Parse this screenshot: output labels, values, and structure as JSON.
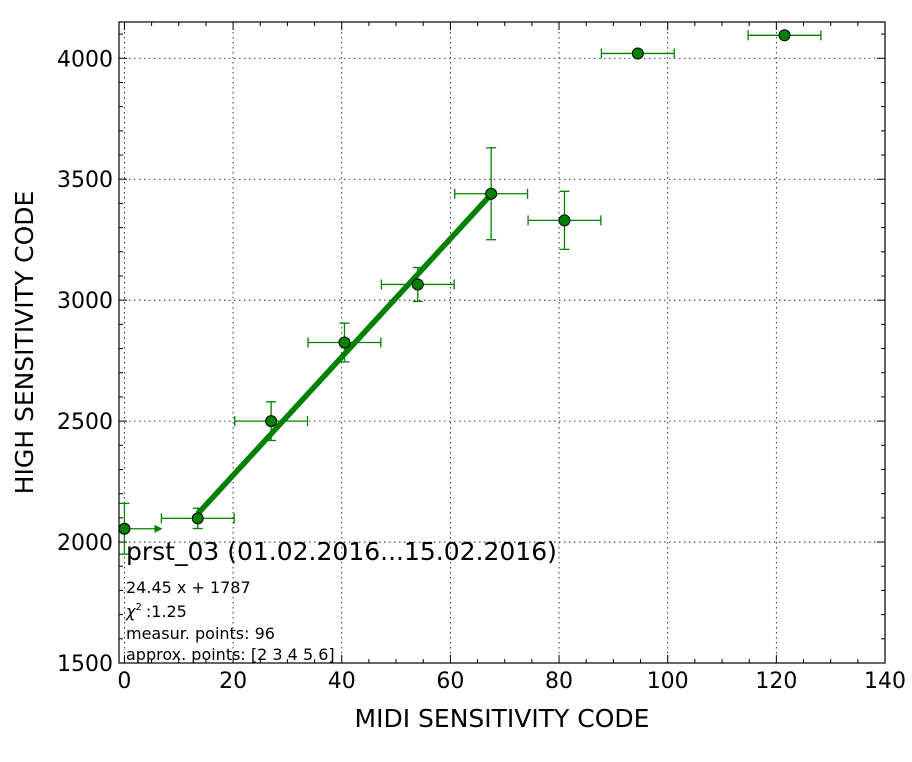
{
  "chart_data": {
    "type": "scatter",
    "xlabel": "MIDI SENSITIVITY CODE",
    "ylabel": "HIGH SENSITIVITY CODE",
    "xlim": [
      -1,
      140
    ],
    "ylim": [
      1500,
      4150
    ],
    "xticks": [
      0,
      20,
      40,
      60,
      80,
      100,
      120,
      140
    ],
    "yticks": [
      1500,
      2000,
      2500,
      3000,
      3500,
      4000
    ],
    "grid": true,
    "colors": {
      "series": "#008000",
      "marker_edge": "#000000",
      "fit": "#008000"
    },
    "points": [
      {
        "x": 0,
        "y": 2055,
        "xerr": 0,
        "yerr": 105,
        "x_arrow_to": 7
      },
      {
        "x": 13.5,
        "y": 2098,
        "xerr": 6.7,
        "yerr": 42
      },
      {
        "x": 27,
        "y": 2500,
        "xerr": 6.7,
        "yerr": 80
      },
      {
        "x": 40.5,
        "y": 2825,
        "xerr": 6.7,
        "yerr": 80
      },
      {
        "x": 54,
        "y": 3065,
        "xerr": 6.7,
        "yerr": 70
      },
      {
        "x": 67.5,
        "y": 3440,
        "xerr": 6.7,
        "yerr": 190
      },
      {
        "x": 81,
        "y": 3330,
        "xerr": 6.7,
        "yerr": 120
      },
      {
        "x": 94.5,
        "y": 4020,
        "xerr": 6.7,
        "yerr": 0
      },
      {
        "x": 121.5,
        "y": 4095,
        "xerr": 6.7,
        "yerr": 0
      }
    ],
    "fit": {
      "slope": 24.45,
      "intercept": 1787,
      "x_from": 13.5,
      "x_to": 67.5
    },
    "annotations": {
      "title": "prst_03 (01.02.2016...15.02.2016)",
      "formula": "24.45 x + 1787",
      "chi2_symbol": "χ",
      "chi2_value": ":1.25",
      "measur_points": "measur. points: 96",
      "approx_points": "approx. points: [2 3 4 5 6]"
    }
  }
}
